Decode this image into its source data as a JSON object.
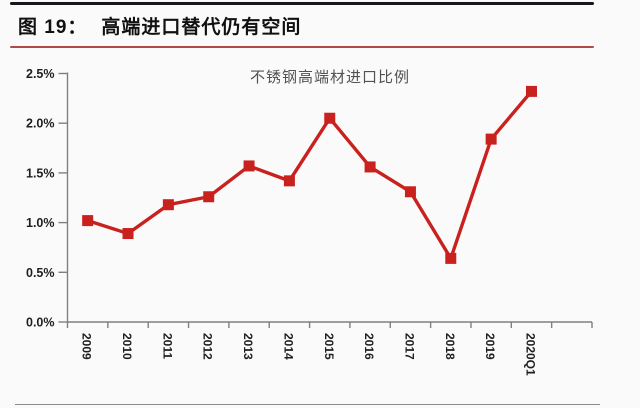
{
  "header": {
    "figure_label": "图 19：",
    "title": "高端进口替代仍有空间"
  },
  "chart_data": {
    "type": "line",
    "title": "不锈钢高端材进口比例",
    "categories": [
      "2009",
      "2010",
      "2011",
      "2012",
      "2013",
      "2014",
      "2015",
      "2016",
      "2017",
      "2018",
      "2019",
      "2020Q1"
    ],
    "values": [
      1.02,
      0.89,
      1.18,
      1.26,
      1.57,
      1.42,
      2.05,
      1.56,
      1.31,
      0.64,
      1.84,
      2.32
    ],
    "unit": "%",
    "ylim": [
      0,
      2.5
    ],
    "ytick_step": 0.5,
    "ytick_labels": [
      "0.0%",
      "0.5%",
      "1.0%",
      "1.5%",
      "2.0%",
      "2.5%"
    ],
    "xlabel": "",
    "ylabel": "",
    "grid": false,
    "legend_position": "none",
    "marker": "square",
    "series_color": "#c9211e"
  },
  "colors": {
    "series_red": "#c9211e",
    "header_rule_red": "#b04a44",
    "top_rule_dark": "#16161f",
    "axis_gray": "#7f7f7f",
    "tick_label": "#1f1f1f",
    "chart_title_gray": "#525252",
    "bottom_rule_gray": "#8c8c8c",
    "background": "#fbfafa"
  }
}
